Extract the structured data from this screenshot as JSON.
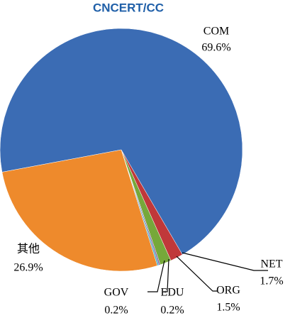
{
  "chart_data": {
    "type": "pie",
    "title": "CNCERT/CC",
    "categories": [
      "COM",
      "NET",
      "ORG",
      "EDU",
      "GOV",
      "其他"
    ],
    "values": [
      69.6,
      1.7,
      1.5,
      0.2,
      0.2,
      26.9
    ],
    "value_labels": [
      "69.6%",
      "1.7%",
      "1.5%",
      "0.2%",
      "0.2%",
      "26.9%"
    ],
    "colors": [
      "#3b6cb4",
      "#c0383a",
      "#76a83a",
      "#7f63a1",
      "#47a9c5",
      "#ee8a2c"
    ],
    "start_angle": 259.4
  }
}
